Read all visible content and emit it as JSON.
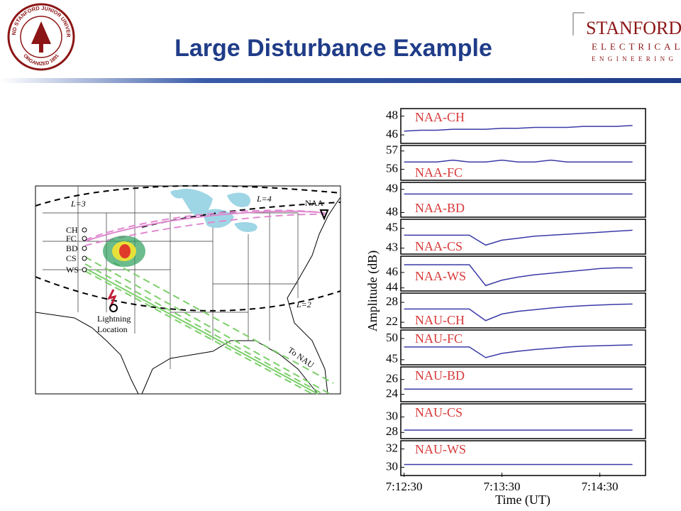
{
  "header": {
    "title": "Large Disturbance Example",
    "seal": {
      "top": "LELAND STANFORD JUNIOR UNIVERSITY",
      "bottom": "ORGANIZED 1891"
    },
    "logo": {
      "name": "STANFORD",
      "line1": "ELECTRICAL",
      "line2": "ENGINEERING"
    }
  },
  "map": {
    "transmitter": "NAA",
    "stations": [
      "CH",
      "FC",
      "BD",
      "CS",
      "WS"
    ],
    "l_shells": [
      "L=3",
      "L=4",
      "L=2"
    ],
    "lightning": [
      "Lightning",
      "Location"
    ],
    "to_nau": "To NAU"
  },
  "chart_data": {
    "type": "line",
    "ylabel": "Amplitude (dB)",
    "xlabel": "Time (UT)",
    "line_color": "#3a3aa8",
    "label_color": "#d83a3a",
    "x": [
      25950,
      25960,
      25970,
      25980,
      25990,
      26000,
      26010,
      26020,
      26030,
      26040,
      26050,
      26060,
      26070,
      26080,
      26090
    ],
    "xlim": [
      25948,
      26098
    ],
    "xticks": [
      {
        "value": 25950,
        "label": "7:12:30"
      },
      {
        "value": 26010,
        "label": "7:13:30"
      },
      {
        "value": 26070,
        "label": "7:14:30"
      }
    ],
    "panels": [
      {
        "name": "NAA-CH",
        "ylim": [
          45.1,
          48.8
        ],
        "yticks": [
          48,
          46
        ],
        "values": [
          46.4,
          46.5,
          46.5,
          46.6,
          46.6,
          46.6,
          46.7,
          46.7,
          46.8,
          46.8,
          46.8,
          46.9,
          46.9,
          46.9,
          47.0
        ]
      },
      {
        "name": "NAA-FC",
        "ylim": [
          55.4,
          57.3
        ],
        "yticks": [
          57,
          56
        ],
        "values": [
          56.4,
          56.4,
          56.4,
          56.5,
          56.4,
          56.4,
          56.5,
          56.4,
          56.4,
          56.5,
          56.4,
          56.4,
          56.4,
          56.4,
          56.4
        ]
      },
      {
        "name": "NAA-BD",
        "ylim": [
          47.8,
          49.3
        ],
        "yticks": [
          49,
          48
        ],
        "values": [
          48.8,
          48.8,
          48.8,
          48.8,
          48.8,
          48.8,
          48.8,
          48.8,
          48.8,
          48.8,
          48.8,
          48.8,
          48.8,
          48.8,
          48.8
        ]
      },
      {
        "name": "NAA-CS",
        "ylim": [
          42.4,
          45.9
        ],
        "yticks": [
          45,
          43
        ],
        "values": [
          44.3,
          44.3,
          44.3,
          44.3,
          44.3,
          43.3,
          43.8,
          44.0,
          44.2,
          44.3,
          44.4,
          44.5,
          44.6,
          44.7,
          44.8
        ]
      },
      {
        "name": "NAA-WS",
        "ylim": [
          43.6,
          48.1
        ],
        "yticks": [
          46,
          44
        ],
        "values": [
          47.0,
          47.0,
          47.0,
          47.0,
          47.0,
          44.3,
          45.0,
          45.4,
          45.7,
          45.9,
          46.1,
          46.3,
          46.5,
          46.6,
          46.6
        ]
      },
      {
        "name": "NAU-CH",
        "ylim": [
          20.3,
          30.8
        ],
        "yticks": [
          28,
          22
        ],
        "values": [
          26.0,
          26.0,
          26.0,
          26.0,
          26.0,
          22.5,
          24.5,
          25.3,
          25.8,
          26.3,
          26.7,
          27.0,
          27.2,
          27.4,
          27.5
        ]
      },
      {
        "name": "NAU-FC",
        "ylim": [
          43.8,
          52
        ],
        "yticks": [
          50,
          45
        ],
        "values": [
          48.0,
          48.0,
          48.0,
          48.0,
          48.0,
          45.5,
          46.5,
          47.0,
          47.4,
          47.7,
          48.0,
          48.2,
          48.3,
          48.4,
          48.5
        ]
      },
      {
        "name": "NAU-BD",
        "ylim": [
          23,
          27.7
        ],
        "yticks": [
          26,
          24
        ],
        "values": [
          24.7,
          24.7,
          24.7,
          24.7,
          24.7,
          24.7,
          24.7,
          24.7,
          24.7,
          24.7,
          24.7,
          24.7,
          24.7,
          24.7,
          24.7
        ]
      },
      {
        "name": "NAU-CS",
        "ylim": [
          27.2,
          31.7
        ],
        "yticks": [
          30,
          28
        ],
        "values": [
          28.3,
          28.3,
          28.3,
          28.3,
          28.3,
          28.3,
          28.3,
          28.3,
          28.3,
          28.3,
          28.3,
          28.3,
          28.3,
          28.3,
          28.3
        ]
      },
      {
        "name": "NAU-WS",
        "ylim": [
          29.1,
          32.9
        ],
        "yticks": [
          32,
          30
        ],
        "values": [
          30.3,
          30.3,
          30.3,
          30.3,
          30.3,
          30.3,
          30.3,
          30.3,
          30.3,
          30.3,
          30.3,
          30.3,
          30.3,
          30.3,
          30.3
        ]
      }
    ]
  }
}
